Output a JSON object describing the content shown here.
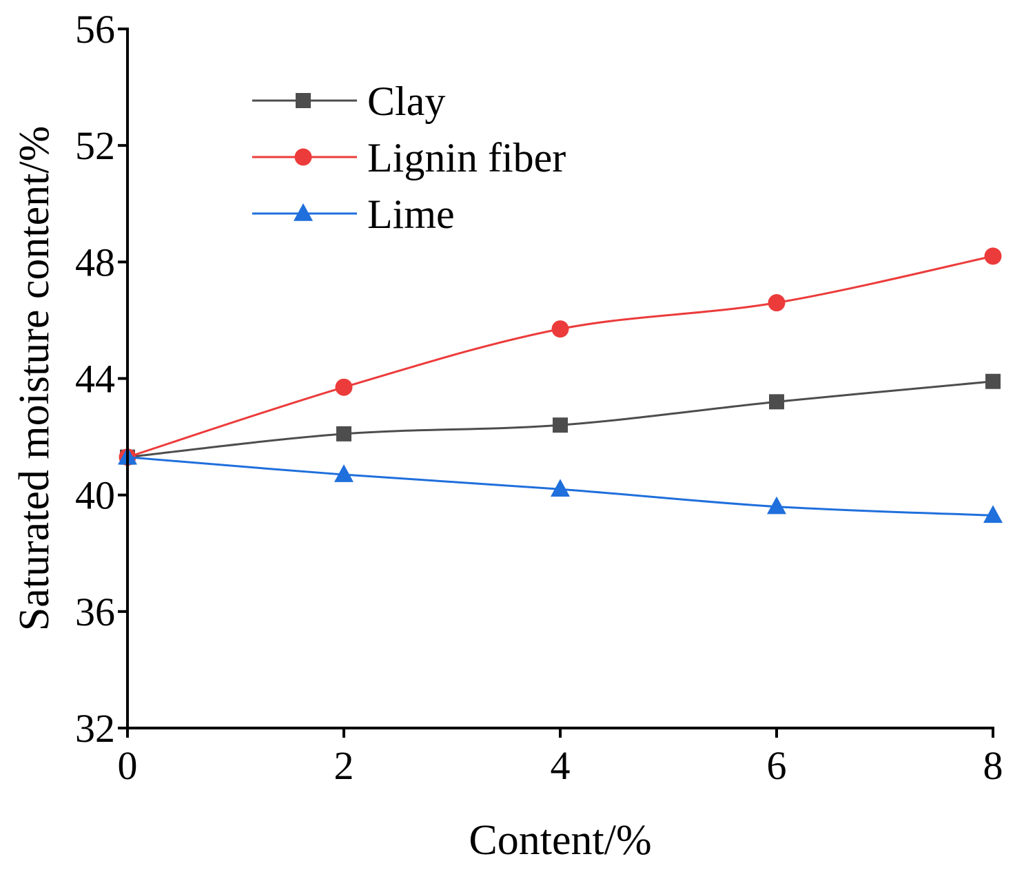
{
  "chart_data": {
    "type": "line",
    "title": "",
    "xlabel": "Content/%",
    "ylabel": "Saturated moisture content/%",
    "xlim": [
      0,
      8
    ],
    "ylim": [
      32,
      56
    ],
    "xticks": [
      0,
      2,
      4,
      6,
      8
    ],
    "yticks": [
      32,
      36,
      40,
      44,
      48,
      52,
      56
    ],
    "x": [
      0,
      2,
      4,
      6,
      8
    ],
    "legend_position": "top-left",
    "series": [
      {
        "name": "Clay",
        "marker": "square",
        "color": "#4d4d4d",
        "values": [
          41.3,
          42.1,
          42.4,
          43.2,
          43.9
        ]
      },
      {
        "name": "Lignin fiber",
        "marker": "circle",
        "color": "#ec3b3b",
        "values": [
          41.3,
          43.7,
          45.7,
          46.6,
          48.2
        ]
      },
      {
        "name": "Lime",
        "marker": "triangle",
        "color": "#1f6fdc",
        "values": [
          41.3,
          40.7,
          40.2,
          39.6,
          39.3
        ]
      }
    ]
  }
}
